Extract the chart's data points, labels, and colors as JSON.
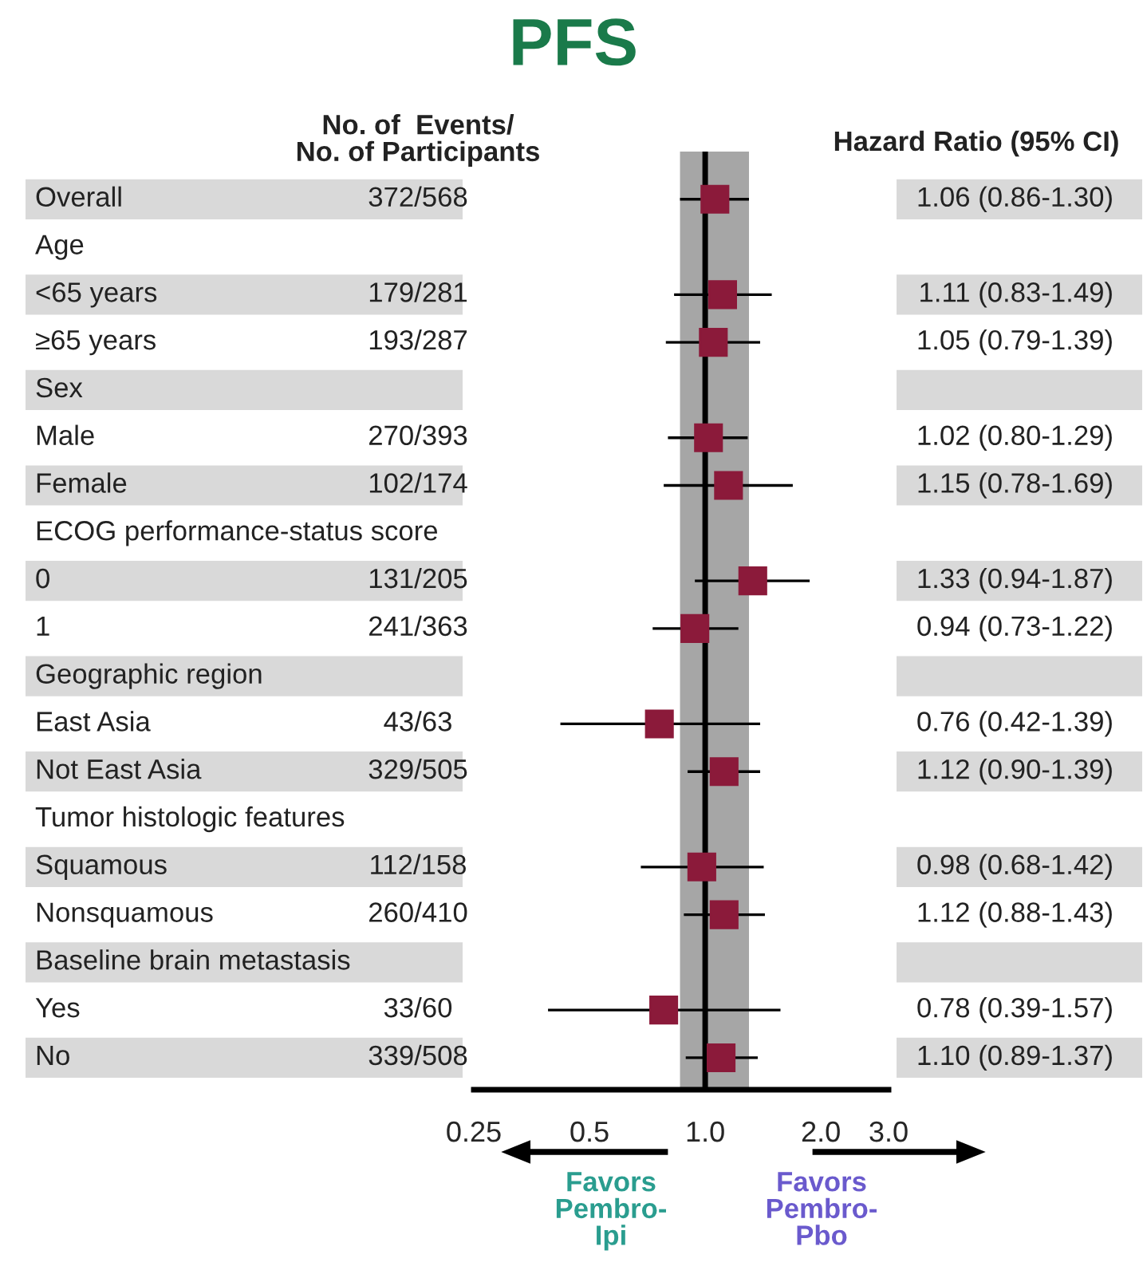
{
  "chart_data": {
    "type": "scatter",
    "title": "PFS",
    "orientation": "horizontal",
    "log": "x",
    "categories": [
      "Overall",
      "Age",
      "<65 years",
      "≥65 years",
      "Sex",
      "Male",
      "Female",
      "ECOG performance-status score",
      "0",
      "1",
      "Geographic region",
      "East Asia",
      "Not East Asia",
      "Tumor histologic features",
      "Squamous",
      "Nonsquamous",
      "Baseline brain metastasis",
      "Yes",
      "No"
    ],
    "series": [
      {
        "color": "#8b1a3a",
        "values": [
          1.06,
          null,
          1.11,
          1.05,
          null,
          1.02,
          1.15,
          null,
          1.33,
          0.94,
          null,
          0.76,
          1.12,
          null,
          0.98,
          1.12,
          null,
          0.78,
          1.1
        ],
        "errors": [
          [
            0.86,
            1.3
          ],
          null,
          [
            0.83,
            1.49
          ],
          [
            0.79,
            1.39
          ],
          null,
          [
            0.8,
            1.29
          ],
          [
            0.78,
            1.69
          ],
          null,
          [
            0.94,
            1.87
          ],
          [
            0.73,
            1.22
          ],
          null,
          [
            0.42,
            1.39
          ],
          [
            0.9,
            1.39
          ],
          null,
          [
            0.68,
            1.42
          ],
          [
            0.88,
            1.43
          ],
          null,
          [
            0.39,
            1.57
          ],
          [
            0.89,
            1.37
          ]
        ],
        "value_labels": [
          "1.06 (0.86-1.30)",
          null,
          "1.11 (0.83-1.49)",
          "1.05 (0.79-1.39)",
          null,
          "1.02 (0.80-1.29)",
          "1.15 (0.78-1.69)",
          null,
          "1.33 (0.94-1.87)",
          "0.94 (0.73-1.22)",
          null,
          "0.76 (0.42-1.39)",
          "1.12 (0.90-1.39)",
          null,
          "0.98 (0.68-1.42)",
          "1.12 (0.88-1.43)",
          null,
          "0.78 (0.39-1.57)",
          "1.10 (0.89-1.37)"
        ]
      }
    ],
    "marker": "square",
    "xlim": [
      0.25,
      3.0
    ],
    "xticks": [
      0.25,
      0.5,
      {
        "value": 1,
        "label": "1.0"
      },
      {
        "value": 2,
        "label": "2.0"
      },
      {
        "value": 3,
        "label": "3.0"
      }
    ],
    "ref_lines": [
      {
        "axis": "x",
        "value": 1.0,
        "color": "#000000"
      }
    ],
    "bands": [
      {
        "axis": "x",
        "from": 0.86,
        "to": 1.3,
        "color": "#a6a6a6"
      }
    ],
    "grid": false,
    "legend": false,
    "annotations": [
      "372/568",
      "179/281",
      "193/287",
      "270/393",
      "102/174",
      "131/205",
      "241/363",
      "43/63",
      "329/505",
      "112/158",
      "260/410",
      "33/60",
      "339/508",
      "No. of  Events/\nNo. of Participants",
      "Hazard Ratio (95% CI)",
      "Favors\nPembro-\nIpi",
      "Favors\nPembro-\nPbo"
    ]
  }
}
